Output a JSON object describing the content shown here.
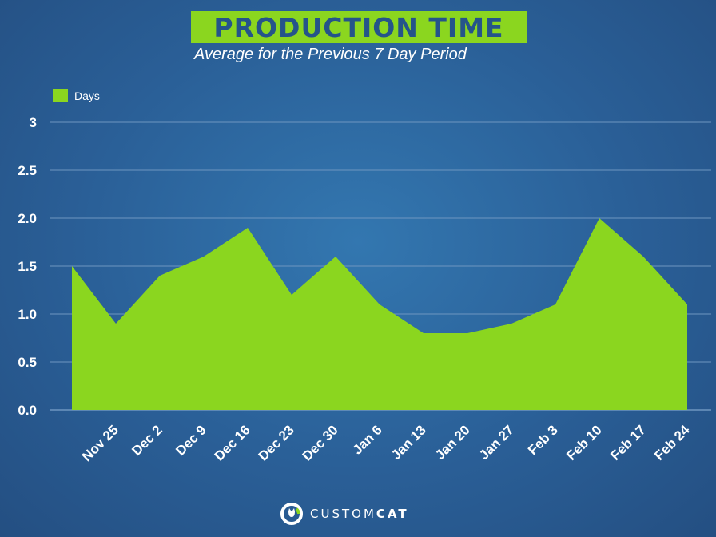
{
  "chart_data": {
    "type": "area",
    "title": "PRODUCTION TIME",
    "subtitle": "Average for the Previous 7 Day Period",
    "xlabel": "",
    "ylabel": "",
    "legend": {
      "position": "top-left",
      "entries": [
        "Days"
      ]
    },
    "grid": true,
    "ylim": [
      0,
      3
    ],
    "yticks": [
      "0.0",
      "0.5",
      "1.0",
      "1.5",
      "2.0",
      "2.5",
      "3"
    ],
    "categories": [
      "",
      "Nov 25",
      "Dec 2",
      "Dec 9",
      "Dec 16",
      "Dec 23",
      "Dec 30",
      "Jan 6",
      "Jan 13",
      "Jan 20",
      "Jan 27",
      "Feb 3",
      "Feb 10",
      "Feb 17",
      "Feb 24"
    ],
    "series": [
      {
        "name": "Days",
        "values": [
          1.5,
          0.9,
          1.4,
          1.6,
          1.9,
          1.2,
          1.6,
          1.1,
          0.8,
          0.8,
          0.9,
          1.1,
          2.0,
          1.6,
          1.1
        ]
      }
    ],
    "colors": {
      "fill": "#8bd61f",
      "grid": "#6e96c0",
      "background": "#2a5f97"
    }
  },
  "brand": {
    "name_part1": "CUSTOM",
    "name_part2": "CAT",
    "logo_icon": "cat-logo-icon"
  }
}
